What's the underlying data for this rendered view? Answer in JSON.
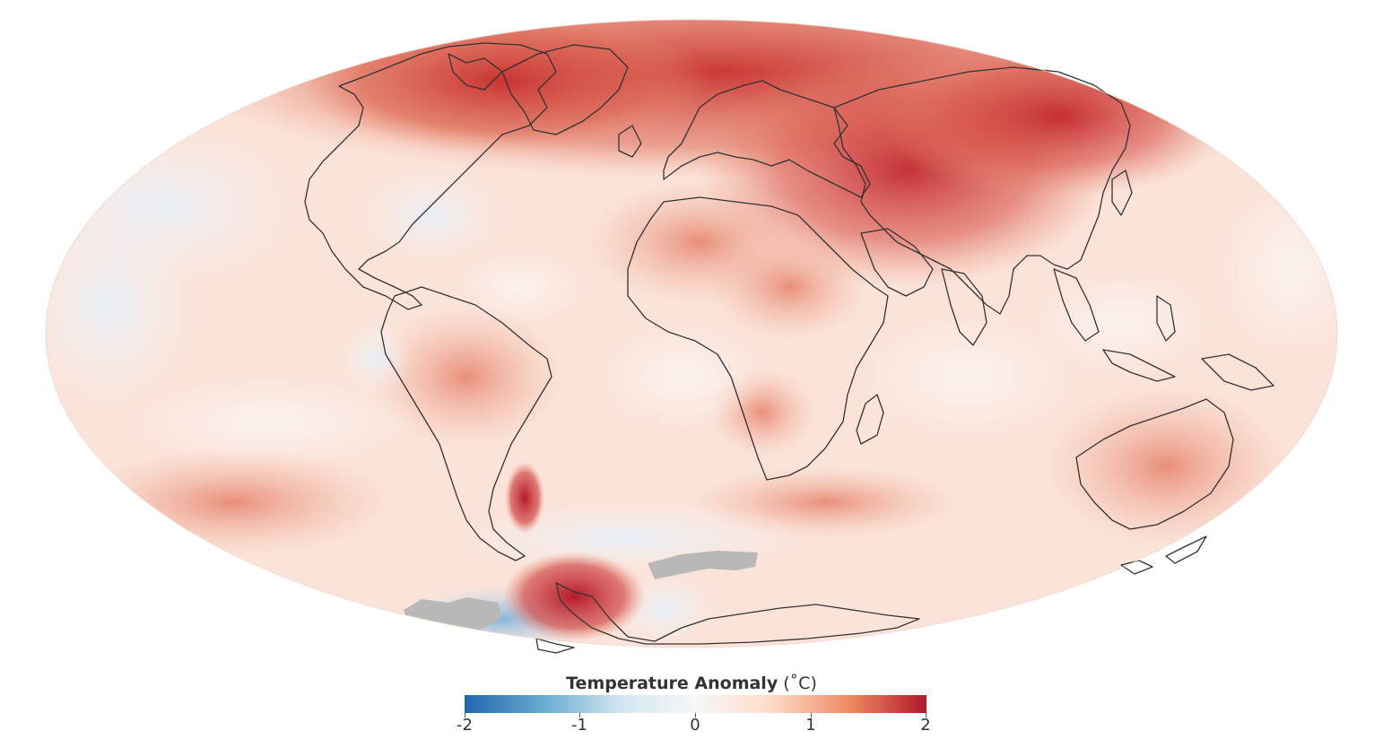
{
  "legend": {
    "title": "Temperature Anomaly",
    "unit": "(˚C)",
    "min": -2,
    "max": 2,
    "ticks": [
      "-2",
      "-1",
      "0",
      "1",
      "2"
    ],
    "colors": [
      "#2166ac",
      "#67a9cf",
      "#d1e5f0",
      "#f7f7f7",
      "#fddbc7",
      "#ef8a62",
      "#b2182b"
    ]
  },
  "map": {
    "projection": "mollweide",
    "ocean_color": "#fbe3d9",
    "no_data_color": "#b8b8b8",
    "coast_color": "#333333"
  }
}
